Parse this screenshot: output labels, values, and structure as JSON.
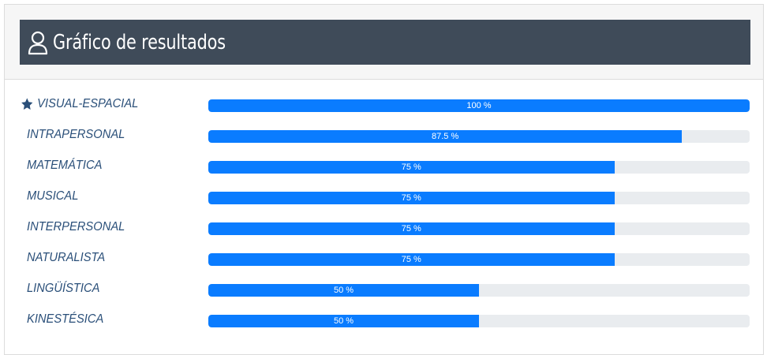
{
  "header": {
    "title": "Gráfico de resultados",
    "icon": "user-icon"
  },
  "colors": {
    "title_bg": "#3f4b59",
    "bar_fill": "#0a7cff",
    "bar_track": "#e9ecef",
    "label": "#2a4f79"
  },
  "results": [
    {
      "label": "VISUAL-ESPACIAL",
      "value": 100,
      "display": "100 %",
      "starred": true
    },
    {
      "label": "INTRAPERSONAL",
      "value": 87.5,
      "display": "87.5 %",
      "starred": false
    },
    {
      "label": "MATEMÁTICA",
      "value": 75,
      "display": "75 %",
      "starred": false
    },
    {
      "label": "MUSICAL",
      "value": 75,
      "display": "75 %",
      "starred": false
    },
    {
      "label": "INTERPERSONAL",
      "value": 75,
      "display": "75 %",
      "starred": false
    },
    {
      "label": "NATURALISTA",
      "value": 75,
      "display": "75 %",
      "starred": false
    },
    {
      "label": "LINGÜÍSTICA",
      "value": 50,
      "display": "50 %",
      "starred": false
    },
    {
      "label": "KINESTÉSICA",
      "value": 50,
      "display": "50 %",
      "starred": false
    }
  ]
}
